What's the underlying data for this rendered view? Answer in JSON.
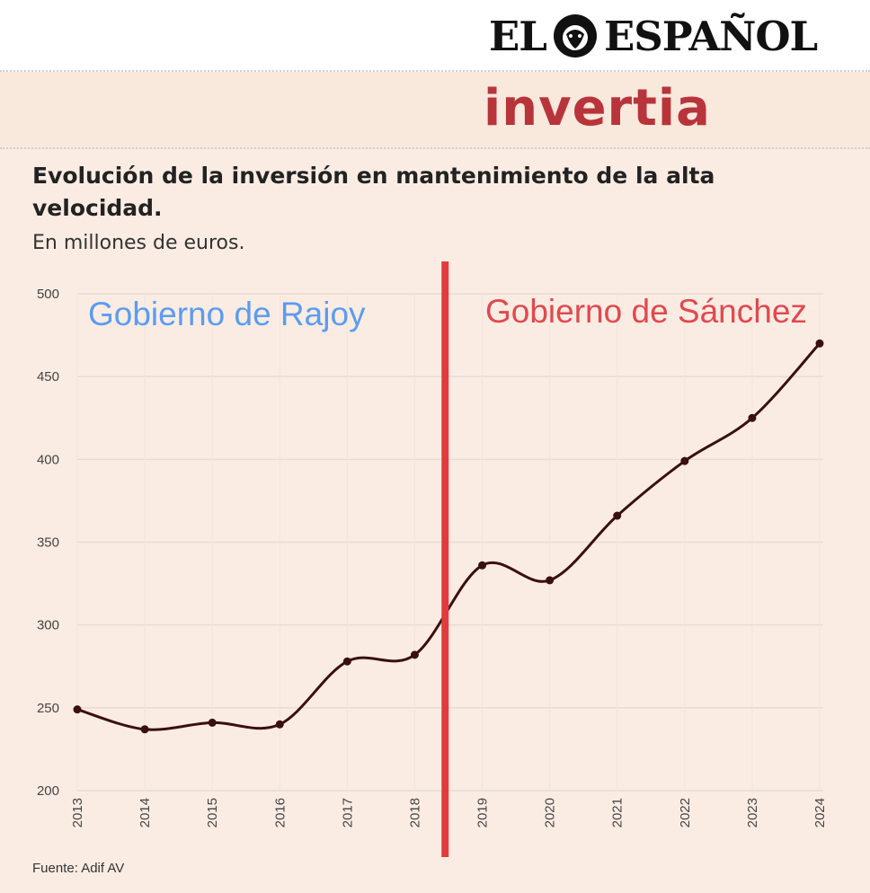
{
  "header": {
    "masthead_left": "EL",
    "masthead_right": "ESPAÑOL",
    "section": "invertia"
  },
  "colors": {
    "rajoy": "#5b9cf0",
    "sanchez": "#e0494f",
    "divider": "#e23b3d",
    "line": "#3a0f0f"
  },
  "source": "Fuente: Adif AV",
  "chart_data": {
    "type": "line",
    "title": "Evolución de la inversión en mantenimiento de la alta velocidad.",
    "subtitle": "En millones de euros.",
    "xlabel": "",
    "ylabel": "",
    "x": [
      "2013",
      "2014",
      "2015",
      "2016",
      "2017",
      "2018",
      "2019",
      "2020",
      "2021",
      "2022",
      "2023",
      "2024"
    ],
    "series": [
      {
        "values": [
          249,
          237,
          241,
          240,
          278,
          282,
          336,
          327,
          366,
          399,
          425,
          470
        ]
      }
    ],
    "ylim": [
      200,
      500
    ],
    "yticks": [
      200,
      250,
      300,
      350,
      400,
      450,
      500
    ],
    "grid": true,
    "annotations": {
      "left_label": "Gobierno de Rajoy",
      "right_label": "Gobierno de Sánchez",
      "divider_position": 2018.45
    }
  }
}
